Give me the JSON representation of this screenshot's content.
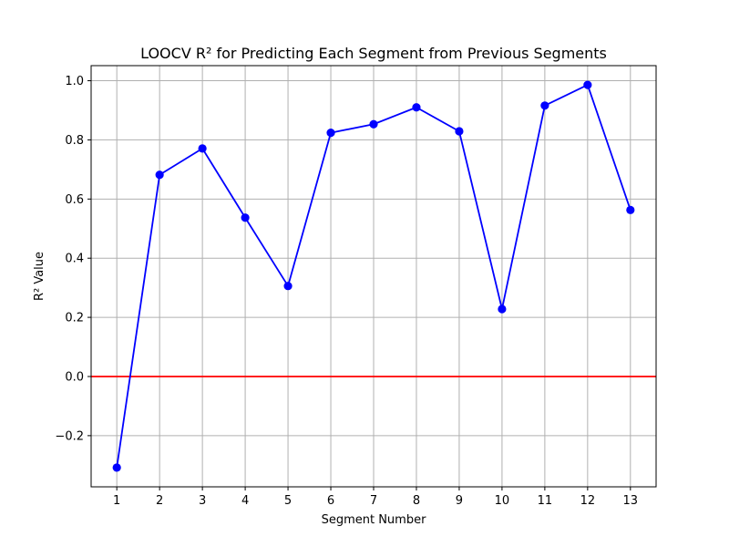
{
  "chart_data": {
    "type": "line",
    "title": "LOOCV R² for Predicting Each Segment from Previous Segments",
    "xlabel": "Segment Number",
    "ylabel": "R² Value",
    "x": [
      1,
      2,
      3,
      4,
      5,
      6,
      7,
      8,
      9,
      10,
      11,
      12,
      13
    ],
    "series": [
      {
        "values": [
          -0.308,
          0.682,
          0.771,
          0.537,
          0.306,
          0.824,
          0.853,
          0.91,
          0.829,
          0.228,
          0.916,
          0.986,
          0.563
        ],
        "color": "#0000ff",
        "marker": "circle"
      }
    ],
    "xticks": [
      1,
      2,
      3,
      4,
      5,
      6,
      7,
      8,
      9,
      10,
      11,
      12,
      13
    ],
    "xtick_labels": [
      "1",
      "2",
      "3",
      "4",
      "5",
      "6",
      "7",
      "8",
      "9",
      "10",
      "11",
      "12",
      "13"
    ],
    "yticks": [
      -0.2,
      0.0,
      0.2,
      0.4,
      0.6,
      0.8,
      1.0
    ],
    "ytick_labels": [
      "−0.2",
      "0.0",
      "0.2",
      "0.4",
      "0.6",
      "0.8",
      "1.0"
    ],
    "xlim": [
      0.4,
      13.6
    ],
    "ylim": [
      -0.373,
      1.051
    ],
    "grid": true,
    "reference_line": {
      "y": 0.0,
      "color": "#ff0000"
    }
  }
}
